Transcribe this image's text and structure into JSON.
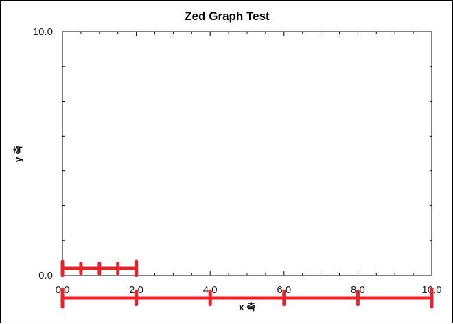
{
  "chart_data": {
    "type": "line",
    "title": "Zed Graph Test",
    "xlabel": "x 축",
    "ylabel": "y 축",
    "xlim": [
      0,
      10
    ],
    "ylim": [
      0,
      10
    ],
    "x_tick_labels": [
      "0.0",
      "2.0",
      "4.0",
      "6.0",
      "8.0",
      "10.0"
    ],
    "y_tick_labels": [
      "0.0",
      "10.0"
    ],
    "x_ticks": [
      0,
      2,
      4,
      6,
      8,
      10
    ],
    "y_ticks": [
      0,
      10
    ],
    "x_minor_ticks": [
      0.5,
      1,
      1.5,
      2.5,
      3,
      3.5,
      4.5,
      5,
      5.5,
      6.5,
      7,
      7.5,
      8.5,
      9,
      9.5
    ],
    "y_minor_ticks": [
      1.43,
      2.86,
      4.29,
      5.71,
      7.14,
      8.57
    ],
    "grid": false,
    "series": [],
    "annotations": {
      "color": "#e8232a",
      "scales": [
        {
          "from": 0,
          "to": 2,
          "ticks": [
            0.5,
            1,
            1.5
          ],
          "end_ticks": true
        },
        {
          "from": 0,
          "to": 10,
          "ticks": [
            2,
            4,
            6,
            8
          ],
          "end_ticks": true
        }
      ]
    }
  }
}
